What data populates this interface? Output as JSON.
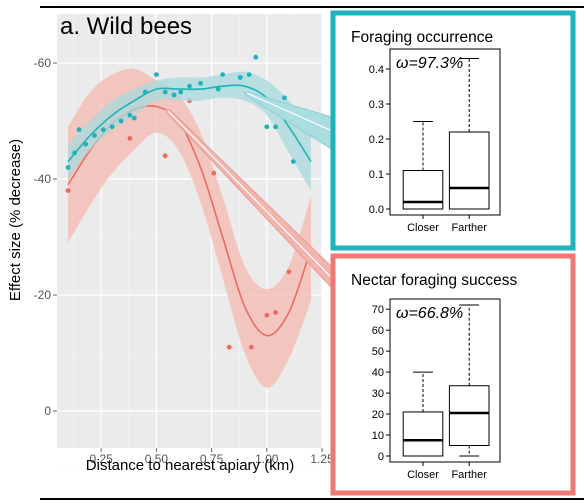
{
  "chart_data": [
    {
      "type": "scatter",
      "title": "a. Wild bees",
      "xlabel": "Distance to nearest apiary (km)",
      "ylabel": "Effect size (% decrease)",
      "xlim": [
        0.05,
        1.25
      ],
      "ylim": [
        0,
        -60
      ],
      "y_axis_reversed": true,
      "grid": true,
      "x_ticks": [
        "0.25",
        "0.50",
        "0.75",
        "1.00",
        "1.25"
      ],
      "x_tick_values": [
        0.25,
        0.5,
        0.75,
        1.0,
        1.25
      ],
      "y_ticks": [
        "-60",
        "-40",
        "-20",
        "0"
      ],
      "y_tick_values": [
        -60,
        -40,
        -20,
        0
      ],
      "series": [
        {
          "color": "#1fb3b8",
          "band_color": "#a8dadd",
          "points": [
            [
              0.1,
              -42
            ],
            [
              0.13,
              -44.5
            ],
            [
              0.15,
              -48.5
            ],
            [
              0.18,
              -46
            ],
            [
              0.22,
              -47.5
            ],
            [
              0.26,
              -48.5
            ],
            [
              0.3,
              -49
            ],
            [
              0.34,
              -50
            ],
            [
              0.38,
              -51
            ],
            [
              0.4,
              -50.5
            ],
            [
              0.45,
              -55
            ],
            [
              0.5,
              -58
            ],
            [
              0.54,
              -55
            ],
            [
              0.58,
              -54.5
            ],
            [
              0.61,
              -55
            ],
            [
              0.65,
              -56
            ],
            [
              0.7,
              -56.5
            ],
            [
              0.78,
              -55.5
            ],
            [
              0.8,
              -58
            ],
            [
              0.88,
              -57.5
            ],
            [
              0.92,
              -58
            ],
            [
              0.95,
              -61
            ],
            [
              1.0,
              -49
            ],
            [
              1.04,
              -49
            ],
            [
              1.08,
              -54
            ],
            [
              1.12,
              -43
            ]
          ],
          "fit": [
            [
              0.1,
              -43
            ],
            [
              0.2,
              -47.5
            ],
            [
              0.3,
              -51
            ],
            [
              0.4,
              -53.5
            ],
            [
              0.5,
              -55.5
            ],
            [
              0.6,
              -55.5
            ],
            [
              0.7,
              -55.5
            ],
            [
              0.8,
              -56
            ],
            [
              0.9,
              -56
            ],
            [
              1.0,
              -54
            ],
            [
              1.1,
              -49
            ],
            [
              1.2,
              -43
            ]
          ],
          "upper": [
            [
              0.1,
              -46
            ],
            [
              0.2,
              -50
            ],
            [
              0.3,
              -53.5
            ],
            [
              0.4,
              -55.5
            ],
            [
              0.5,
              -57
            ],
            [
              0.6,
              -57.5
            ],
            [
              0.7,
              -57.5
            ],
            [
              0.8,
              -58
            ],
            [
              0.9,
              -58.5
            ],
            [
              1.0,
              -57
            ],
            [
              1.1,
              -53.5
            ],
            [
              1.2,
              -48
            ]
          ],
          "lower": [
            [
              0.1,
              -40
            ],
            [
              0.2,
              -45
            ],
            [
              0.3,
              -48.5
            ],
            [
              0.4,
              -51
            ],
            [
              0.5,
              -53.5
            ],
            [
              0.6,
              -53.5
            ],
            [
              0.7,
              -53.5
            ],
            [
              0.8,
              -54
            ],
            [
              0.9,
              -53.5
            ],
            [
              1.0,
              -51
            ],
            [
              1.1,
              -44.5
            ],
            [
              1.2,
              -38
            ]
          ]
        },
        {
          "color": "#ec6a5e",
          "band_color": "#f4b9b0",
          "points": [
            [
              0.1,
              -38
            ],
            [
              0.38,
              -47
            ],
            [
              0.54,
              -44
            ],
            [
              0.65,
              -53.5
            ],
            [
              0.76,
              -41
            ],
            [
              0.83,
              -11
            ],
            [
              0.93,
              -11
            ],
            [
              1.0,
              -16.5
            ],
            [
              1.04,
              -17
            ],
            [
              1.1,
              -24
            ],
            [
              1.2,
              -27
            ]
          ],
          "fit": [
            [
              0.1,
              -39
            ],
            [
              0.2,
              -45
            ],
            [
              0.3,
              -49.5
            ],
            [
              0.4,
              -52
            ],
            [
              0.5,
              -52.5
            ],
            [
              0.6,
              -50
            ],
            [
              0.7,
              -42
            ],
            [
              0.8,
              -30
            ],
            [
              0.9,
              -18
            ],
            [
              1.0,
              -13
            ],
            [
              1.1,
              -17
            ],
            [
              1.2,
              -28
            ]
          ],
          "upper": [
            [
              0.1,
              -49
            ],
            [
              0.2,
              -55
            ],
            [
              0.3,
              -58
            ],
            [
              0.4,
              -59
            ],
            [
              0.5,
              -57
            ],
            [
              0.6,
              -54.5
            ],
            [
              0.7,
              -48
            ],
            [
              0.8,
              -37
            ],
            [
              0.9,
              -25
            ],
            [
              1.0,
              -21
            ],
            [
              1.1,
              -25
            ],
            [
              1.2,
              -37
            ]
          ],
          "lower": [
            [
              0.1,
              -29
            ],
            [
              0.2,
              -35.5
            ],
            [
              0.3,
              -41
            ],
            [
              0.4,
              -45
            ],
            [
              0.5,
              -48
            ],
            [
              0.6,
              -45
            ],
            [
              0.7,
              -36
            ],
            [
              0.8,
              -23
            ],
            [
              0.9,
              -10
            ],
            [
              1.0,
              -4
            ],
            [
              1.1,
              -9
            ],
            [
              1.2,
              -19
            ]
          ]
        }
      ]
    },
    {
      "type": "box",
      "title": "Foraging occurrence",
      "annotation": "ω=97.3%",
      "categories": [
        "Closer",
        "Farther"
      ],
      "ylim": [
        0,
        0.44
      ],
      "y_ticks": [
        "0.0",
        "0.1",
        "0.2",
        "0.3",
        "0.4"
      ],
      "y_tick_values": [
        0,
        0.1,
        0.2,
        0.3,
        0.4
      ],
      "boxes": [
        {
          "min": 0,
          "q1": 0,
          "median": 0.02,
          "q3": 0.11,
          "max": 0.25
        },
        {
          "min": 0,
          "q1": 0,
          "median": 0.06,
          "q3": 0.22,
          "max": 0.43
        }
      ],
      "border_color": "#1bb3bc"
    },
    {
      "type": "box",
      "title": "Nectar foraging success",
      "annotation": "ω=66.8%",
      "categories": [
        "Closer",
        "Farther"
      ],
      "ylim": [
        0,
        72
      ],
      "y_ticks": [
        "0",
        "10",
        "20",
        "30",
        "40",
        "50",
        "60",
        "70"
      ],
      "y_tick_values": [
        0,
        10,
        20,
        30,
        40,
        50,
        60,
        70
      ],
      "boxes": [
        {
          "min": 0,
          "q1": 0,
          "median": 7.5,
          "q3": 21,
          "max": 40
        },
        {
          "min": 0,
          "q1": 5,
          "median": 20.5,
          "q3": 33.5,
          "max": 72
        }
      ],
      "border_color": "#ef7a73"
    }
  ]
}
